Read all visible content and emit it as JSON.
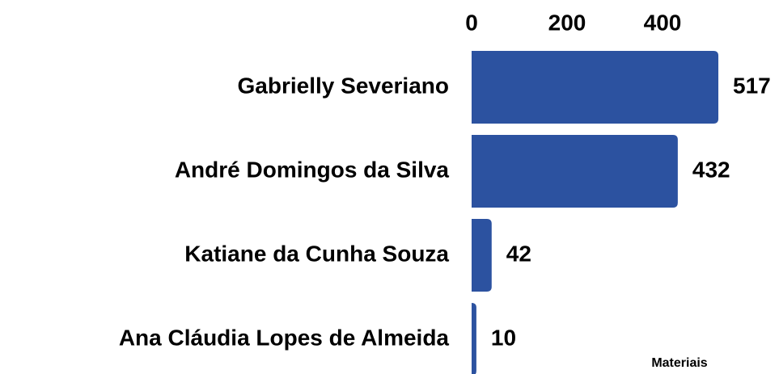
{
  "chart_data": {
    "type": "barh",
    "categories": [
      "Gabrielly Severiano",
      "André Domingos da Silva",
      "Katiane da Cunha Souza",
      "Ana Cláudia Lopes de Almeida"
    ],
    "values": [
      517,
      432,
      42,
      10
    ],
    "color": "#2c52a0",
    "xlabel": "Materiais",
    "xlim": [
      0,
      600
    ],
    "xticks": [
      0,
      200,
      400
    ]
  }
}
